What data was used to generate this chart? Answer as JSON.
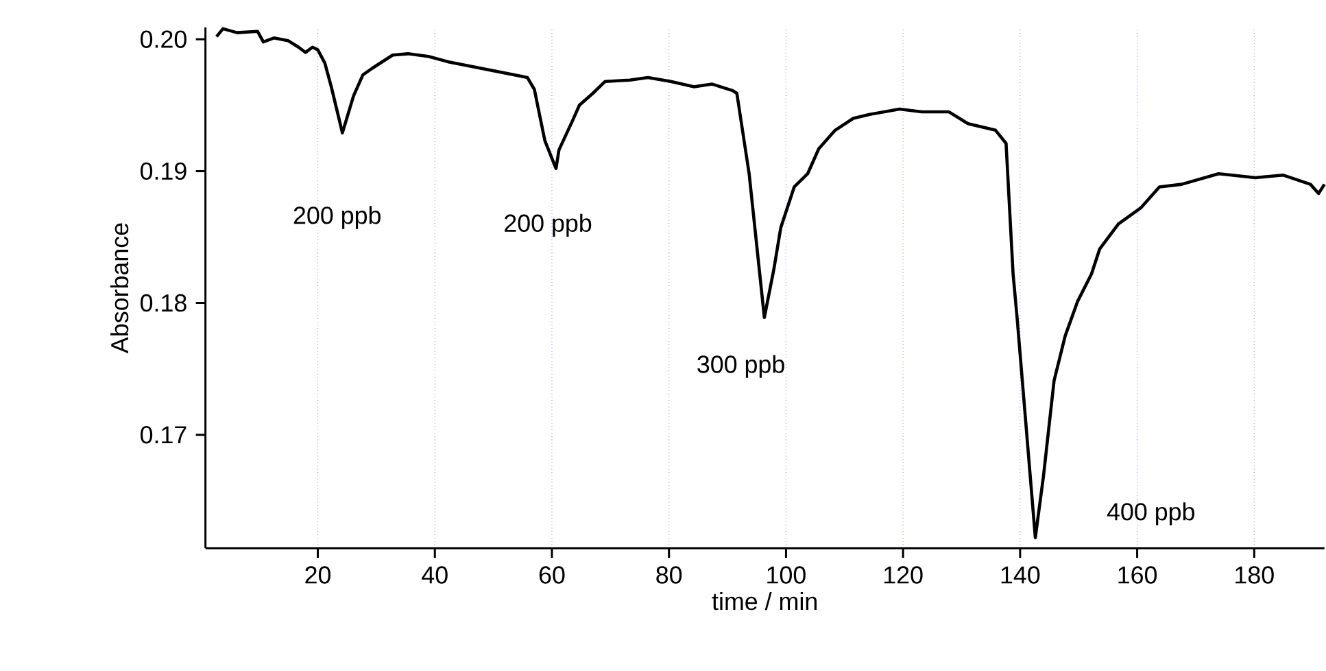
{
  "chart_data": {
    "type": "line",
    "xlabel": "time / min",
    "ylabel": "Absorbance",
    "xlim": [
      0.8,
      192
    ],
    "ylim": [
      0.1614,
      0.2009
    ],
    "xticks": [
      20,
      40,
      60,
      80,
      100,
      120,
      140,
      160,
      180
    ],
    "yticks": [
      {
        "value": 0.17,
        "label": "0.17"
      },
      {
        "value": 0.18,
        "label": "0.18"
      },
      {
        "value": 0.19,
        "label": "0.19"
      },
      {
        "value": 0.2,
        "label": "0.20"
      }
    ],
    "grid": "x",
    "marker": "none",
    "line_style": "solid",
    "series": [
      {
        "color": "#000000",
        "x": [
          2.7,
          3.8,
          6.2,
          9.7,
          10.7,
          12.5,
          14.9,
          16.7,
          17.9,
          19.1,
          20,
          21.2,
          22.3,
          24.2,
          26.1,
          27.7,
          29.3,
          32.8,
          35.4,
          38.9,
          42.2,
          55.8,
          57,
          58.8,
          60.7,
          61.2,
          63.5,
          64.7,
          67,
          69.1,
          73.3,
          76.4,
          80.3,
          84.3,
          87.4,
          90.9,
          91.6,
          93.7,
          96.3,
          97.9,
          99.1,
          101.4,
          103.7,
          105.6,
          108.4,
          111.5,
          114.3,
          119.4,
          123.2,
          127.8,
          131.1,
          135.8,
          137.6,
          138.8,
          139.5,
          142.6,
          144,
          145.8,
          147.7,
          149.8,
          152.2,
          153.6,
          156.8,
          160.6,
          163.8,
          167.6,
          173.9,
          180.2,
          184.9,
          189.6,
          191,
          192
        ],
        "values": [
          0.2002,
          0.2008,
          0.2005,
          0.2006,
          0.1998,
          0.2001,
          0.1999,
          0.1994,
          0.199,
          0.1994,
          0.1992,
          0.1982,
          0.1964,
          0.1929,
          0.1957,
          0.1973,
          0.1978,
          0.1988,
          0.1989,
          0.1987,
          0.1983,
          0.1971,
          0.1962,
          0.1923,
          0.1902,
          0.1916,
          0.1938,
          0.195,
          0.1959,
          0.1968,
          0.1969,
          0.1971,
          0.1968,
          0.1964,
          0.1966,
          0.1961,
          0.1959,
          0.1898,
          0.1789,
          0.1825,
          0.1857,
          0.1888,
          0.1898,
          0.1917,
          0.1931,
          0.194,
          0.1943,
          0.1947,
          0.1945,
          0.1945,
          0.1936,
          0.1931,
          0.1921,
          0.1822,
          0.1788,
          0.1622,
          0.1669,
          0.1741,
          0.1775,
          0.1801,
          0.1822,
          0.1841,
          0.186,
          0.1872,
          0.1888,
          0.189,
          0.1898,
          0.1895,
          0.1897,
          0.189,
          0.1883,
          0.189
        ]
      }
    ],
    "annotations": [
      "200 ppb",
      "200 ppb",
      "300 ppb",
      "400 ppb"
    ]
  }
}
